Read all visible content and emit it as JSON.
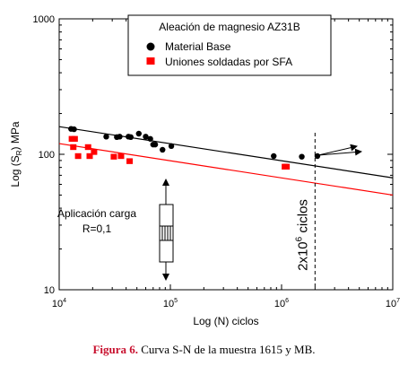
{
  "chart_data": {
    "type": "scatter",
    "xlabel": "Log (N) ciclos",
    "ylabel": "Log (S",
    "ylabel_sub": "R",
    "ylabel_unit": ") MPa",
    "x_scale": "log",
    "y_scale": "log",
    "xlim": [
      10000,
      10000000
    ],
    "ylim": [
      10,
      1000
    ],
    "x_ticks": [
      {
        "value": 10000,
        "mant": "10",
        "exp": "4"
      },
      {
        "value": 100000,
        "mant": "10",
        "exp": "5"
      },
      {
        "value": 1000000,
        "mant": "10",
        "exp": "6"
      },
      {
        "value": 10000000,
        "mant": "10",
        "exp": "7"
      }
    ],
    "y_ticks": [
      {
        "value": 10,
        "label": "10"
      },
      {
        "value": 100,
        "label": "100"
      },
      {
        "value": 1000,
        "label": "1000"
      }
    ],
    "grid": false,
    "legend": {
      "position": "top-right",
      "title": "Aleación de magnesio AZ31B",
      "entries": [
        "Material Base",
        "Uniones soldadas por SFA"
      ]
    },
    "series": [
      {
        "name": "Material Base",
        "marker": "circle",
        "color": "#000000",
        "points": [
          [
            12800,
            154
          ],
          [
            13600,
            153
          ],
          [
            26500,
            135
          ],
          [
            33000,
            134
          ],
          [
            35000,
            135
          ],
          [
            42000,
            135
          ],
          [
            44000,
            134
          ],
          [
            52000,
            142
          ],
          [
            60000,
            135
          ],
          [
            66000,
            130
          ],
          [
            70000,
            118
          ],
          [
            73000,
            118
          ],
          [
            85000,
            108
          ],
          [
            102000,
            115
          ],
          [
            850000,
            97
          ],
          [
            1520000,
            96
          ],
          [
            2100000,
            97
          ]
        ]
      },
      {
        "name": "Uniones soldadas por SFA",
        "marker": "square",
        "color": "#ff0000",
        "points": [
          [
            13000,
            130
          ],
          [
            13800,
            130
          ],
          [
            13400,
            113
          ],
          [
            14800,
            97
          ],
          [
            18200,
            113
          ],
          [
            18800,
            97
          ],
          [
            20600,
            104
          ],
          [
            31000,
            96
          ],
          [
            36000,
            97
          ],
          [
            43000,
            89
          ],
          [
            1070000,
            81
          ],
          [
            1110000,
            81
          ]
        ]
      }
    ],
    "fit_lines": [
      {
        "series": "Material Base",
        "color": "#000000",
        "from": [
          10000,
          160
        ],
        "to": [
          10000000,
          67
        ]
      },
      {
        "series": "Uniones soldadas por SFA",
        "color": "#ff0000",
        "from": [
          10000,
          120
        ],
        "to": [
          10000000,
          50
        ]
      }
    ],
    "vline": {
      "x": 2000000,
      "label_mant": "2x10",
      "label_exp": "6",
      "label_unit": " ciclos"
    },
    "annotation": {
      "line1": "Aplicación carga",
      "line2": "R=0,1"
    }
  },
  "caption": {
    "prefix": "Figura 6.",
    "text": " Curva S-N de la muestra 1615 y MB."
  }
}
